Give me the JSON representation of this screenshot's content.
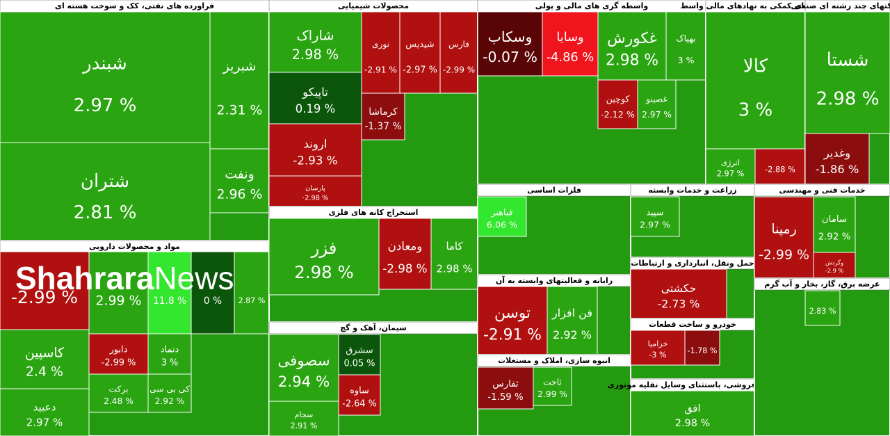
{
  "brand": [
    "Shahrara",
    "News"
  ],
  "chart_data": {
    "type": "treemap",
    "sectors": [
      {
        "title": "فراورده های نفتی، کک و سوخت هسته ای",
        "tiles": [
          {
            "name": "شبندر",
            "value": 2.97,
            "value_label": "2.97 %"
          },
          {
            "name": "شتران",
            "value": 2.81,
            "value_label": "2.81 %"
          },
          {
            "name": "شبریز",
            "value": 2.31,
            "value_label": "2.31 %"
          },
          {
            "name": "ونفت",
            "value": 2.96,
            "value_label": "2.96 %"
          }
        ]
      },
      {
        "title": "مواد و محصولات دارویی",
        "tiles": [
          {
            "value": -2.99,
            "value_label": "-2.99 %"
          },
          {
            "name": "کاسپین",
            "value": 2.4,
            "value_label": "2.4 %"
          },
          {
            "name": "دعبید",
            "value": 2.97,
            "value_label": "2.97 %"
          },
          {
            "value": 2.99,
            "value_label": "2.99 %"
          },
          {
            "name": "دابور",
            "value": -2.99,
            "value_label": "-2.99 %"
          },
          {
            "name": "برکت",
            "value": 2.48,
            "value_label": "2.48 %"
          },
          {
            "value": 11.8,
            "value_label": "11.8 %"
          },
          {
            "value": 0,
            "value_label": "0 %"
          },
          {
            "value": 2.87,
            "value_label": "2.87 %"
          },
          {
            "name": "دتماد",
            "value": 3,
            "value_label": "3 %"
          },
          {
            "name": "کی بی سی",
            "value": 2.92,
            "value_label": "2.92 %"
          }
        ]
      },
      {
        "title": "محصولات شیمیایی",
        "tiles": [
          {
            "name": "شاراک",
            "value": 2.98,
            "value_label": "2.98 %"
          },
          {
            "name": "تاپیکو",
            "value": 0.19,
            "value_label": "0.19 %"
          },
          {
            "name": "اروند",
            "value": -2.93,
            "value_label": "-2.93 %"
          },
          {
            "name": "پارسان",
            "value": -2.98,
            "value_label": "-2.98 %"
          },
          {
            "name": "نوری",
            "value": -2.91,
            "value_label": "-2.91 %"
          },
          {
            "name": "شپدیس",
            "value": -2.97,
            "value_label": "-2.97 %"
          },
          {
            "name": "فارس",
            "value": -2.99,
            "value_label": "-2.99 %"
          },
          {
            "name": "کرماشا",
            "value": -1.37,
            "value_label": "-1.37 %"
          }
        ]
      },
      {
        "title": "استخراج کانه های فلزی",
        "tiles": [
          {
            "name": "فزر",
            "value": 2.98,
            "value_label": "2.98 %"
          },
          {
            "name": "ومعادن",
            "value": -2.98,
            "value_label": "-2.98 %"
          },
          {
            "name": "کاما",
            "value": 2.98,
            "value_label": "2.98 %"
          }
        ]
      },
      {
        "title": "سیمان، آهک و گچ",
        "tiles": [
          {
            "name": "سصوفی",
            "value": 2.94,
            "value_label": "2.94 %"
          },
          {
            "name": "سجام",
            "value": 2.91,
            "value_label": "2.91 %"
          },
          {
            "name": "سشرق",
            "value": 0.05,
            "value_label": "0.05 %"
          },
          {
            "name": "ساوه",
            "value": -2.64,
            "value_label": "-2.64 %"
          }
        ]
      },
      {
        "title": "واسطه گری های مالی و پولی",
        "tiles": [
          {
            "name": "وسکاب",
            "value": -0.07,
            "value_label": "-0.07 %"
          },
          {
            "name": "وسایا",
            "value": -4.86,
            "value_label": "-4.86 %"
          },
          {
            "name": "غکورش",
            "value": 2.98,
            "value_label": "2.98 %"
          },
          {
            "name": "بهپاک",
            "value": 3,
            "value_label": "3 %"
          },
          {
            "name": "کوچین",
            "value": -2.12,
            "value_label": "-2.12 %"
          },
          {
            "name": "غصینو",
            "value": 2.97,
            "value_label": "2.97 %"
          }
        ]
      },
      {
        "title": "فعالیتهای کمکی به نهادهای مالی واسط",
        "tiles": [
          {
            "name": "کالا",
            "value": 3,
            "value_label": "3 %"
          },
          {
            "name": "انرژی",
            "value": 2.97,
            "value_label": "2.97 %"
          },
          {
            "value": -2.88,
            "value_label": "-2.88 %"
          }
        ]
      },
      {
        "title": "شرکتهای چند رشته ای صنعتی",
        "tiles": [
          {
            "name": "شستا",
            "value": 2.98,
            "value_label": "2.98 %"
          },
          {
            "name": "وغدیر",
            "value": -1.86,
            "value_label": "-1.86 %"
          }
        ]
      },
      {
        "title": "فلزات اساسی",
        "tiles": [
          {
            "name": "فباهنر",
            "value": 6.06,
            "value_label": "6.06 %"
          }
        ]
      },
      {
        "title": "رایانه و فعالیتهای وابسته به آن",
        "tiles": [
          {
            "name": "توسن",
            "value": -2.91,
            "value_label": "-2.91 %"
          },
          {
            "name": "فن افزار",
            "value": 2.92,
            "value_label": "2.92 %"
          }
        ]
      },
      {
        "title": "انبوه سازی، املاک و مستغلات",
        "tiles": [
          {
            "name": "ثفارس",
            "value": -1.59,
            "value_label": "-1.59 %"
          },
          {
            "name": "ثاخت",
            "value": 2.99,
            "value_label": "2.99 %"
          }
        ]
      },
      {
        "title": "زراعت و خدمات وابسته",
        "tiles": [
          {
            "name": "سپید",
            "value": 2.97,
            "value_label": "2.97 %"
          }
        ]
      },
      {
        "title": "حمل ونقل، انبارداری و ارتباطات",
        "tiles": [
          {
            "name": "حکشتی",
            "value": -2.73,
            "value_label": "-2.73 %"
          }
        ]
      },
      {
        "title": "خودرو و ساخت قطعات",
        "tiles": [
          {
            "name": "خزامیا",
            "value": -3,
            "value_label": "-3 %"
          },
          {
            "value": -1.78,
            "value_label": "-1.78 %"
          }
        ]
      },
      {
        "title": "خرده فروشی، باستثنای وسایل نقلیه موتوری",
        "tiles": [
          {
            "name": "افق",
            "value": 2.98,
            "value_label": "2.98 %"
          }
        ]
      },
      {
        "title": "خدمات فنی و مهندسی",
        "tiles": [
          {
            "name": "رمپنا",
            "value": -2.99,
            "value_label": "-2.99 %"
          },
          {
            "name": "سامان",
            "value": 2.92,
            "value_label": "2.92 %"
          },
          {
            "name": "وگردش",
            "value": -2.9,
            "value_label": "-2.9 %"
          }
        ]
      },
      {
        "title": "عرضه برق، گاز، بخار و آب گرم",
        "tiles": [
          {
            "value": 2.83,
            "value_label": "2.83 %"
          }
        ]
      }
    ]
  }
}
